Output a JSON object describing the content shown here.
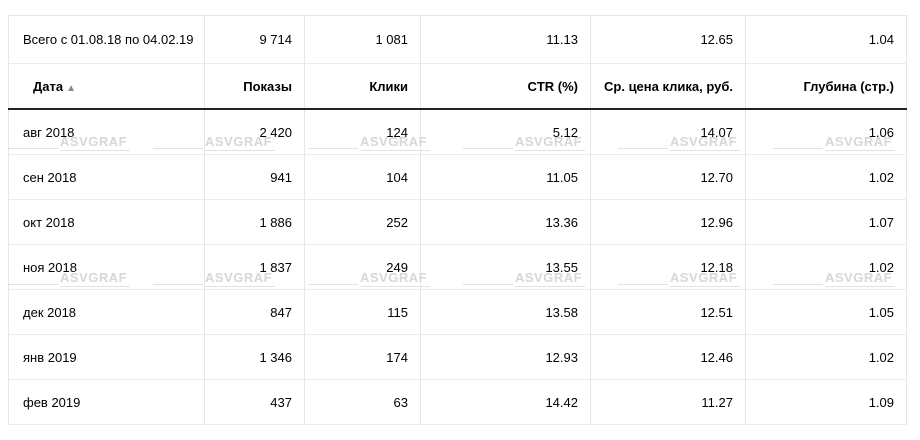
{
  "summary": {
    "label": "Всего с 01.08.18 по 04.02.19",
    "shows": "9 714",
    "clicks": "1 081",
    "ctr": "11.13",
    "avg_cpc": "12.65",
    "depth": "1.04"
  },
  "columns": {
    "date": "Дата",
    "date_sort_icon": "▲",
    "shows": "Показы",
    "clicks": "Клики",
    "ctr": "CTR (%)",
    "avg_cpc": "Ср. цена клика, руб.",
    "depth": "Глубина (стр.)"
  },
  "rows": [
    {
      "date": "авг 2018",
      "shows": "2 420",
      "clicks": "124",
      "ctr": "5.12",
      "avg_cpc": "14.07",
      "depth": "1.06"
    },
    {
      "date": "сен 2018",
      "shows": "941",
      "clicks": "104",
      "ctr": "11.05",
      "avg_cpc": "12.70",
      "depth": "1.02"
    },
    {
      "date": "окт 2018",
      "shows": "1 886",
      "clicks": "252",
      "ctr": "13.36",
      "avg_cpc": "12.96",
      "depth": "1.07"
    },
    {
      "date": "ноя 2018",
      "shows": "1 837",
      "clicks": "249",
      "ctr": "13.55",
      "avg_cpc": "12.18",
      "depth": "1.02"
    },
    {
      "date": "дек 2018",
      "shows": "847",
      "clicks": "115",
      "ctr": "13.58",
      "avg_cpc": "12.51",
      "depth": "1.05"
    },
    {
      "date": "янв 2019",
      "shows": "1 346",
      "clicks": "174",
      "ctr": "12.93",
      "avg_cpc": "12.46",
      "depth": "1.02"
    },
    {
      "date": "фев 2019",
      "shows": "437",
      "clicks": "63",
      "ctr": "14.42",
      "avg_cpc": "11.27",
      "depth": "1.09"
    }
  ],
  "watermark": {
    "text": "ASVGRAF"
  }
}
